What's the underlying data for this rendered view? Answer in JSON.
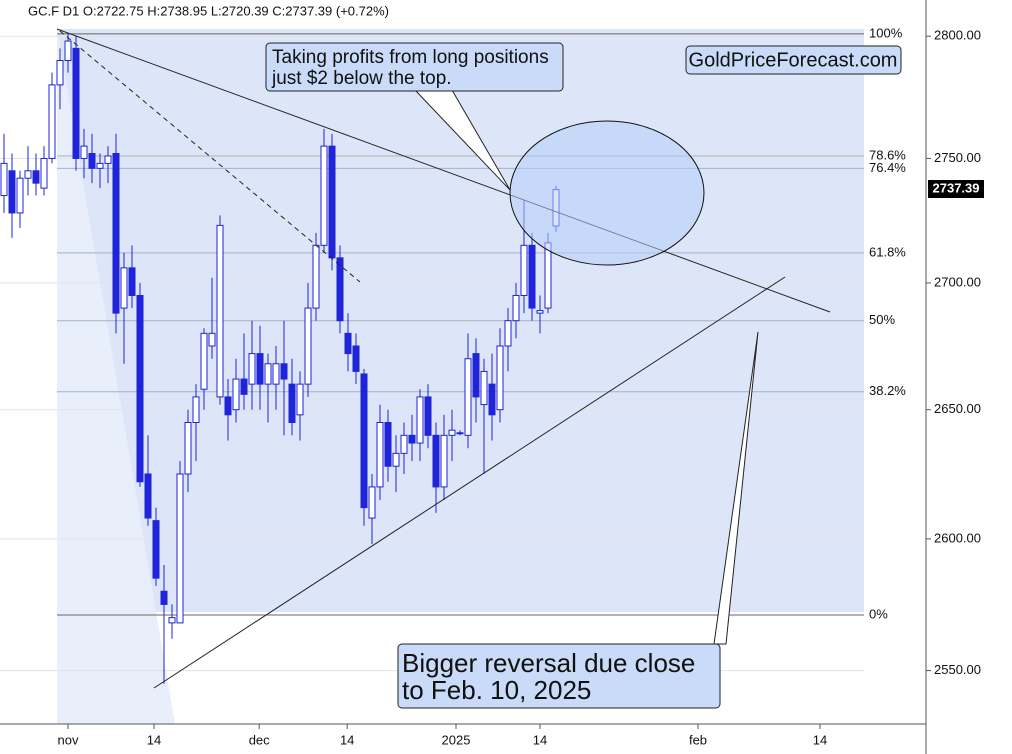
{
  "chart_data": {
    "type": "candlestick",
    "header": "GC.F  D1  O:2722.75  H:2738.95  L:2720.39  C:2737.39  (+0.72%)",
    "watermark": "GoldPriceForecast.com",
    "annotations": [
      "Taking profits from long positions",
      "just $2 below the top.",
      "Bigger reversal due close",
      "to Feb. 10, 2025"
    ],
    "last_price_label": "2737.39",
    "log_scale": true,
    "ylim": [
      2530,
      2815
    ],
    "yticks": [
      {
        "value": 2800,
        "label": "2800.00"
      },
      {
        "value": 2750,
        "label": "2750.00"
      },
      {
        "value": 2700,
        "label": "2700.00"
      },
      {
        "value": 2650,
        "label": "2650.00"
      },
      {
        "value": 2600,
        "label": "2600.00"
      },
      {
        "value": 2550,
        "label": "2550.00"
      }
    ],
    "xlim": [
      -0.5,
      107.5
    ],
    "xticks": [
      {
        "value": 8,
        "label": "nov"
      },
      {
        "value": 18.75,
        "label": "14"
      },
      {
        "value": 31.9,
        "label": "dec"
      },
      {
        "value": 42.9,
        "label": "14"
      },
      {
        "value": 56.5,
        "label": "2025"
      },
      {
        "value": 67,
        "label": "14"
      },
      {
        "value": 86.75,
        "label": "feb"
      },
      {
        "value": 102,
        "label": "14"
      }
    ],
    "fib_levels": [
      {
        "label": "100%",
        "value": 2801
      },
      {
        "label": "78.6%",
        "value": 2751
      },
      {
        "label": "76.4%",
        "value": 2746
      },
      {
        "label": "61.8%",
        "value": 2712
      },
      {
        "label": "50%",
        "value": 2685
      },
      {
        "label": "38.2%",
        "value": 2657
      },
      {
        "label": "0%",
        "value": 2571
      }
    ],
    "up_color": "#ffffff",
    "down_color": "#1f24d8",
    "edge_color": "#1f24d8",
    "candles": [
      {
        "open": 2735,
        "high": 2760,
        "low": 2728,
        "close": 2748
      },
      {
        "open": 2745,
        "high": 2752,
        "low": 2718,
        "close": 2728
      },
      {
        "open": 2728,
        "high": 2745,
        "low": 2722,
        "close": 2742
      },
      {
        "open": 2742,
        "high": 2755,
        "low": 2735,
        "close": 2745
      },
      {
        "open": 2745,
        "high": 2752,
        "low": 2735,
        "close": 2740
      },
      {
        "open": 2738,
        "high": 2755,
        "low": 2735,
        "close": 2750
      },
      {
        "open": 2750,
        "high": 2785,
        "low": 2748,
        "close": 2780
      },
      {
        "open": 2780,
        "high": 2795,
        "low": 2770,
        "close": 2790
      },
      {
        "open": 2790,
        "high": 2801,
        "low": 2785,
        "close": 2798
      },
      {
        "open": 2795,
        "high": 2800,
        "low": 2745,
        "close": 2750
      },
      {
        "open": 2750,
        "high": 2762,
        "low": 2742,
        "close": 2755
      },
      {
        "open": 2752,
        "high": 2760,
        "low": 2740,
        "close": 2746
      },
      {
        "open": 2746,
        "high": 2752,
        "low": 2738,
        "close": 2748
      },
      {
        "open": 2748,
        "high": 2755,
        "low": 2740,
        "close": 2751
      },
      {
        "open": 2752,
        "high": 2760,
        "low": 2680,
        "close": 2688
      },
      {
        "open": 2690,
        "high": 2712,
        "low": 2668,
        "close": 2706
      },
      {
        "open": 2706,
        "high": 2715,
        "low": 2690,
        "close": 2695
      },
      {
        "open": 2695,
        "high": 2700,
        "low": 2620,
        "close": 2622
      },
      {
        "open": 2625,
        "high": 2640,
        "low": 2605,
        "close": 2608
      },
      {
        "open": 2607,
        "high": 2612,
        "low": 2582,
        "close": 2585
      },
      {
        "open": 2580,
        "high": 2590,
        "low": 2545,
        "close": 2575
      },
      {
        "open": 2568,
        "high": 2575,
        "low": 2562,
        "close": 2570
      },
      {
        "open": 2568,
        "high": 2630,
        "low": 2568,
        "close": 2625
      },
      {
        "open": 2625,
        "high": 2650,
        "low": 2618,
        "close": 2645
      },
      {
        "open": 2645,
        "high": 2660,
        "low": 2630,
        "close": 2655
      },
      {
        "open": 2658,
        "high": 2682,
        "low": 2650,
        "close": 2680
      },
      {
        "open": 2675,
        "high": 2702,
        "low": 2670,
        "close": 2680
      },
      {
        "open": 2655,
        "high": 2727,
        "low": 2652,
        "close": 2723
      },
      {
        "open": 2655,
        "high": 2662,
        "low": 2638,
        "close": 2648
      },
      {
        "open": 2650,
        "high": 2670,
        "low": 2645,
        "close": 2662
      },
      {
        "open": 2662,
        "high": 2680,
        "low": 2650,
        "close": 2656
      },
      {
        "open": 2660,
        "high": 2685,
        "low": 2650,
        "close": 2672
      },
      {
        "open": 2672,
        "high": 2683,
        "low": 2650,
        "close": 2660
      },
      {
        "open": 2660,
        "high": 2672,
        "low": 2645,
        "close": 2668
      },
      {
        "open": 2660,
        "high": 2675,
        "low": 2650,
        "close": 2668
      },
      {
        "open": 2668,
        "high": 2685,
        "low": 2640,
        "close": 2662
      },
      {
        "open": 2660,
        "high": 2670,
        "low": 2640,
        "close": 2645
      },
      {
        "open": 2648,
        "high": 2665,
        "low": 2638,
        "close": 2660
      },
      {
        "open": 2660,
        "high": 2700,
        "low": 2655,
        "close": 2690
      },
      {
        "open": 2690,
        "high": 2720,
        "low": 2685,
        "close": 2715
      },
      {
        "open": 2715,
        "high": 2762,
        "low": 2712,
        "close": 2755
      },
      {
        "open": 2755,
        "high": 2760,
        "low": 2705,
        "close": 2710
      },
      {
        "open": 2710,
        "high": 2715,
        "low": 2680,
        "close": 2685
      },
      {
        "open": 2680,
        "high": 2688,
        "low": 2665,
        "close": 2672
      },
      {
        "open": 2675,
        "high": 2680,
        "low": 2660,
        "close": 2665
      },
      {
        "open": 2664,
        "high": 2666,
        "low": 2605,
        "close": 2612
      },
      {
        "open": 2608,
        "high": 2625,
        "low": 2598,
        "close": 2620
      },
      {
        "open": 2620,
        "high": 2652,
        "low": 2615,
        "close": 2645
      },
      {
        "open": 2645,
        "high": 2650,
        "low": 2622,
        "close": 2628
      },
      {
        "open": 2628,
        "high": 2640,
        "low": 2618,
        "close": 2633
      },
      {
        "open": 2633,
        "high": 2645,
        "low": 2625,
        "close": 2640
      },
      {
        "open": 2640,
        "high": 2648,
        "low": 2630,
        "close": 2637
      },
      {
        "open": 2637,
        "high": 2658,
        "low": 2630,
        "close": 2655
      },
      {
        "open": 2655,
        "high": 2660,
        "low": 2635,
        "close": 2640
      },
      {
        "open": 2640,
        "high": 2645,
        "low": 2610,
        "close": 2620
      },
      {
        "open": 2620,
        "high": 2648,
        "low": 2615,
        "close": 2640
      },
      {
        "open": 2640,
        "high": 2650,
        "low": 2630,
        "close": 2642
      },
      {
        "open": 2641,
        "high": 2642,
        "low": 2640,
        "close": 2641
      },
      {
        "open": 2640,
        "high": 2680,
        "low": 2635,
        "close": 2670
      },
      {
        "open": 2672,
        "high": 2678,
        "low": 2645,
        "close": 2655
      },
      {
        "open": 2652,
        "high": 2670,
        "low": 2625,
        "close": 2665
      },
      {
        "open": 2660,
        "high": 2672,
        "low": 2638,
        "close": 2648
      },
      {
        "open": 2650,
        "high": 2682,
        "low": 2645,
        "close": 2675
      },
      {
        "open": 2675,
        "high": 2690,
        "low": 2665,
        "close": 2685
      },
      {
        "open": 2685,
        "high": 2700,
        "low": 2678,
        "close": 2695
      },
      {
        "open": 2695,
        "high": 2733,
        "low": 2688,
        "close": 2715
      },
      {
        "open": 2715,
        "high": 2720,
        "low": 2685,
        "close": 2690
      },
      {
        "open": 2688,
        "high": 2695,
        "low": 2680,
        "close": 2689
      },
      {
        "open": 2690,
        "high": 2720,
        "low": 2688,
        "close": 2716
      },
      {
        "open": 2722.75,
        "high": 2738.95,
        "low": 2720.39,
        "close": 2737.39
      }
    ]
  }
}
